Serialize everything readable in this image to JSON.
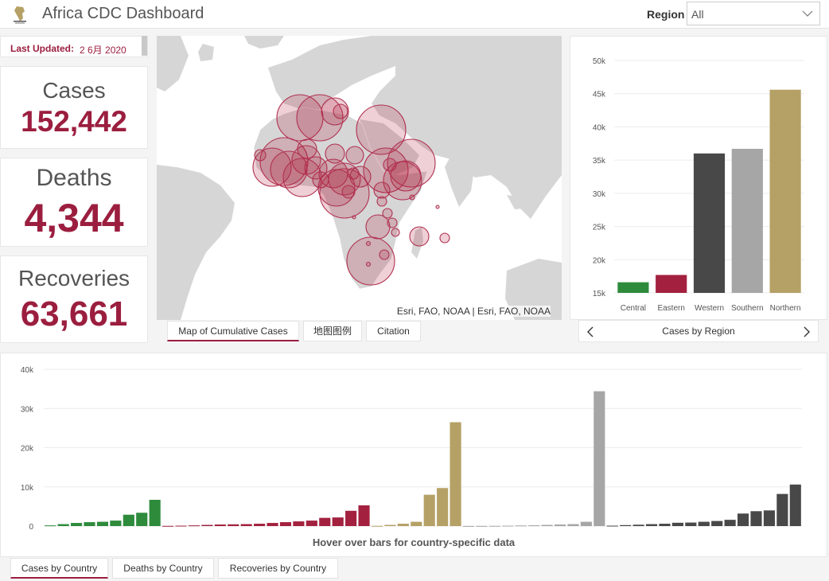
{
  "header": {
    "title": "Africa CDC Dashboard",
    "region_label": "Region",
    "region_value": "All"
  },
  "stats": {
    "last_updated_label": "Last Updated:",
    "last_updated_value": "2 6月 2020",
    "cases_label": "Cases",
    "cases_value": "152,442",
    "deaths_label": "Deaths",
    "deaths_value": "4,344",
    "recoveries_label": "Recoveries",
    "recoveries_value": "63,661"
  },
  "map": {
    "attribution": "Esri, FAO, NOAA | Esri, FAO, NOAA",
    "tabs": [
      "Map of Cumulative Cases",
      "地图图例",
      "Citation"
    ]
  },
  "region_chart": {
    "caption": "Cases by Region"
  },
  "country_chart": {
    "hint": "Hover over bars for country-specific data",
    "tabs": [
      "Cases by Country",
      "Deaths by Country",
      "Recoveries by Country"
    ]
  },
  "colors": {
    "accent": "#9b1e3f",
    "central": "#2e8b3c",
    "eastern": "#a3213f",
    "western": "#484848",
    "southern": "#a6a6a6",
    "northern": "#b5a166"
  },
  "chart_data": [
    {
      "type": "bar",
      "categories": [
        "Central",
        "Eastern",
        "Western",
        "Southern",
        "Northern"
      ],
      "values": [
        16600,
        17700,
        36000,
        36700,
        45600
      ],
      "ylim": [
        15000,
        50000
      ],
      "yticks": [
        "15k",
        "20k",
        "25k",
        "30k",
        "35k",
        "40k",
        "45k",
        "50k"
      ],
      "title": "Cases by Region"
    },
    {
      "type": "bar",
      "ylim": [
        0,
        40000
      ],
      "yticks": [
        "0",
        "10k",
        "20k",
        "30k",
        "40k"
      ],
      "series": [
        {
          "name": "Central",
          "values": [
            180,
            500,
            800,
            1000,
            1100,
            1400,
            2900,
            3400,
            6700
          ]
        },
        {
          "name": "Eastern",
          "values": [
            50,
            100,
            180,
            300,
            400,
            450,
            500,
            600,
            800,
            1000,
            1200,
            1400,
            2100,
            2200,
            3900,
            5300
          ]
        },
        {
          "name": "Northern",
          "values": [
            50,
            300,
            600,
            1100,
            8000,
            9700,
            26500
          ]
        },
        {
          "name": "Southern",
          "values": [
            20,
            30,
            50,
            100,
            150,
            200,
            300,
            400,
            500,
            1100,
            34400
          ]
        },
        {
          "name": "Western",
          "values": [
            100,
            250,
            350,
            500,
            600,
            850,
            900,
            1100,
            1300,
            1600,
            3200,
            3800,
            4000,
            8200,
            10600
          ]
        }
      ]
    }
  ]
}
